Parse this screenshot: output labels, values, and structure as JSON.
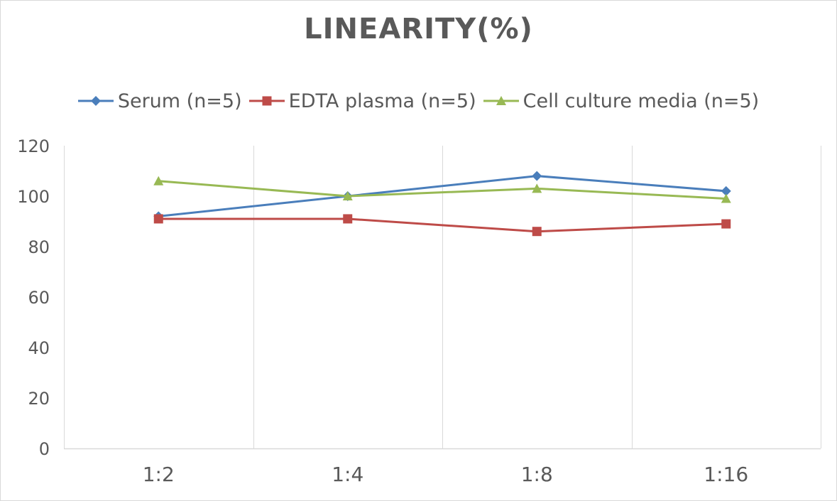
{
  "chart_data": {
    "type": "line",
    "title": "LINEARITY(%)",
    "xlabel": "",
    "ylabel": "",
    "categories": [
      "1:2",
      "1:4",
      "1:8",
      "1:16"
    ],
    "ylim": [
      0,
      120
    ],
    "yticks": [
      0,
      20,
      40,
      60,
      80,
      100,
      120
    ],
    "grid": "vertical",
    "legend_position": "top",
    "series": [
      {
        "name": "Serum (n=5)",
        "values": [
          92,
          100,
          108,
          102
        ],
        "color": "#4a7ebb",
        "marker": "diamond"
      },
      {
        "name": "EDTA plasma (n=5)",
        "values": [
          91,
          91,
          86,
          89
        ],
        "color": "#be4b48",
        "marker": "square"
      },
      {
        "name": "Cell culture media (n=5)",
        "values": [
          106,
          100,
          103,
          99
        ],
        "color": "#98b954",
        "marker": "triangle"
      }
    ]
  }
}
